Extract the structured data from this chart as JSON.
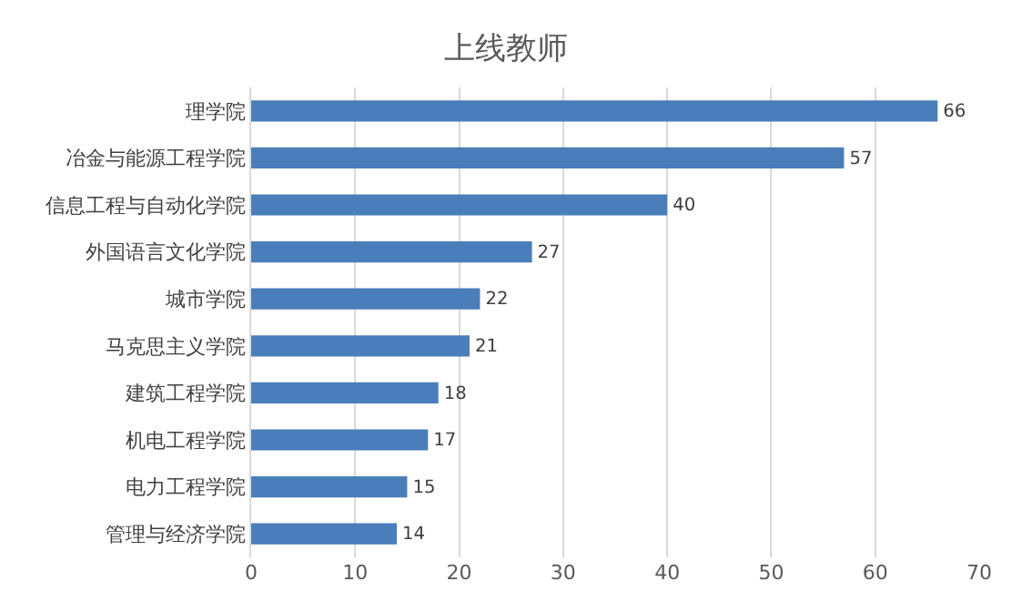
{
  "chart_data": {
    "type": "bar",
    "orientation": "horizontal",
    "title": "上线教师",
    "categories": [
      "理学院",
      "冶金与能源工程学院",
      "信息工程与自动化学院",
      "外国语言文化学院",
      "城市学院",
      "马克思主义学院",
      "建筑工程学院",
      "机电工程学院",
      "电力工程学院",
      "管理与经济学院"
    ],
    "values": [
      66,
      57,
      40,
      27,
      22,
      21,
      18,
      17,
      15,
      14
    ],
    "color": "#4a7ebb",
    "xlim": [
      0,
      70
    ],
    "xticks": [
      0,
      10,
      20,
      30,
      40,
      50,
      60,
      70
    ],
    "grid": "x",
    "data_labels": true
  }
}
